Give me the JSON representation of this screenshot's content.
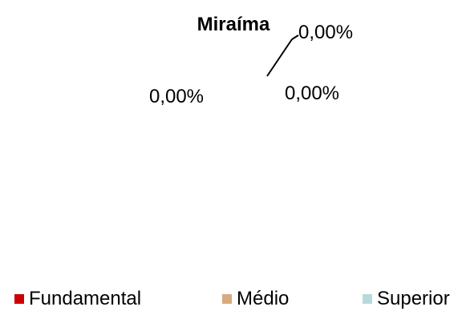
{
  "chart_data": {
    "type": "pie",
    "title": "Miraíma",
    "categories": [
      "Fundamental",
      "Médio",
      "Superior"
    ],
    "values": [
      0,
      0,
      0
    ],
    "data_labels": [
      "0,00%",
      "0,00%",
      "0,00%"
    ],
    "legend": "bottom",
    "colors": {
      "Fundamental": "#cc0000",
      "Médio": "#d9aa80",
      "Superior": "#b6d9dc"
    }
  }
}
